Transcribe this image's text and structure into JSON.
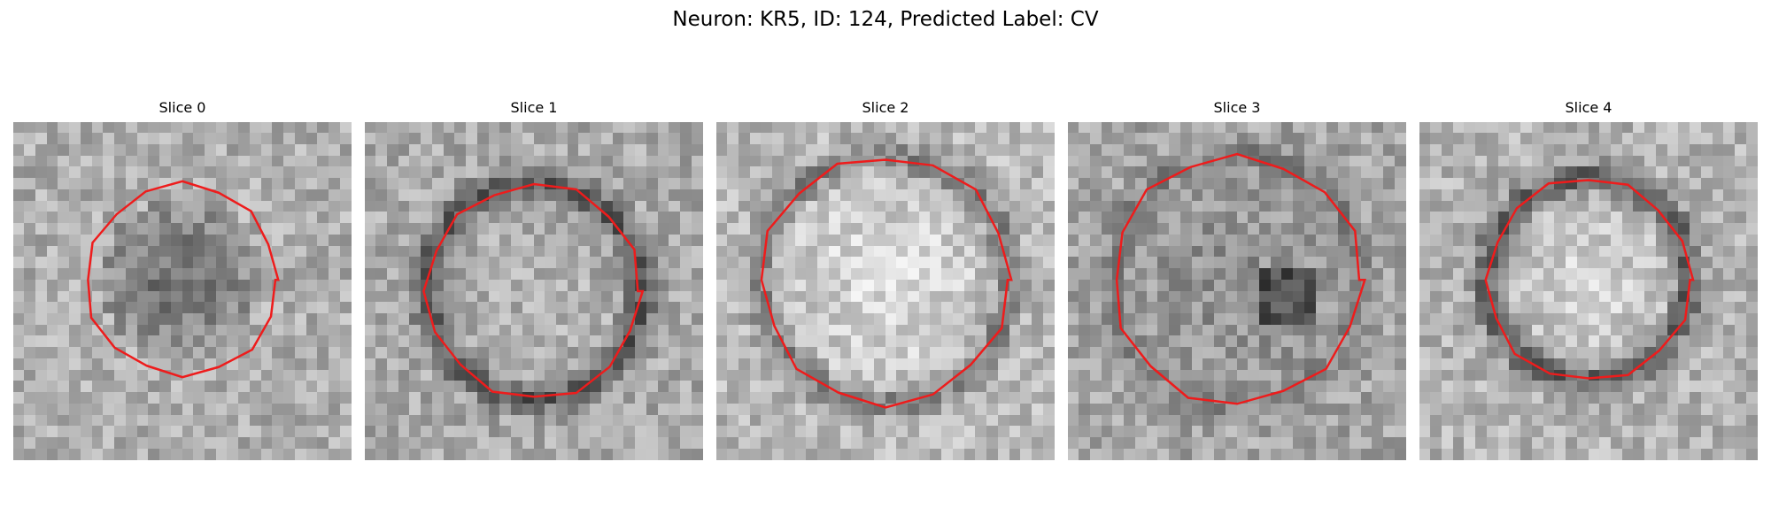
{
  "figure": {
    "title": "Neuron: KR5, ID: 124, Predicted Label: CV",
    "contour_color": "#ee1c1c",
    "slices": [
      {
        "title": "Slice 0",
        "center_tone": "dark"
      },
      {
        "title": "Slice 1",
        "center_tone": "light-with-dark-ring"
      },
      {
        "title": "Slice 2",
        "center_tone": "light"
      },
      {
        "title": "Slice 3",
        "center_tone": "mixed-dark-core"
      },
      {
        "title": "Slice 4",
        "center_tone": "light-with-dark-ring"
      }
    ]
  }
}
